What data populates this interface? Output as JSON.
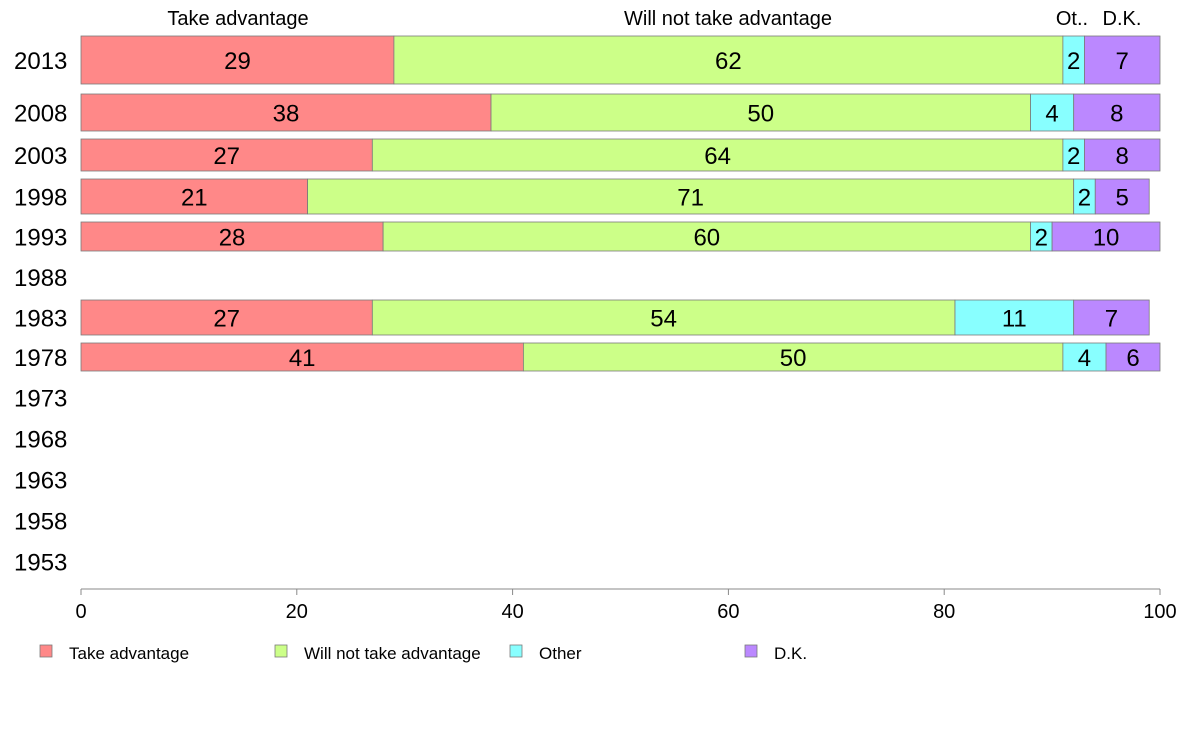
{
  "chart_data": {
    "type": "bar",
    "orientation": "horizontal",
    "stacked": true,
    "title": "",
    "xlabel": "",
    "ylabel": "",
    "xlim": [
      0,
      100
    ],
    "x_ticks": [
      "0",
      "20",
      "40",
      "60",
      "80",
      "100"
    ],
    "grid": false,
    "legend_position": "bottom",
    "column_headers": [
      "Take advantage",
      "Will not take advantage",
      "Ot..",
      "D.K."
    ],
    "categories": [
      "2013",
      "2008",
      "2003",
      "1998",
      "1993",
      "1988",
      "1983",
      "1978",
      "1973",
      "1968",
      "1963",
      "1958",
      "1953"
    ],
    "series": [
      {
        "name": "Take advantage",
        "color": "#ff8888",
        "values": [
          29,
          38,
          27,
          21,
          28,
          null,
          27,
          41,
          null,
          null,
          null,
          null,
          null
        ]
      },
      {
        "name": "Will not take advantage",
        "color": "#ccff88",
        "values": [
          62,
          50,
          64,
          71,
          60,
          null,
          54,
          50,
          null,
          null,
          null,
          null,
          null
        ]
      },
      {
        "name": "Other",
        "color": "#88ffff",
        "values": [
          2,
          4,
          2,
          2,
          2,
          null,
          11,
          4,
          null,
          null,
          null,
          null,
          null
        ]
      },
      {
        "name": "D.K.",
        "color": "#bb88ff",
        "values": [
          7,
          8,
          8,
          5,
          10,
          null,
          7,
          6,
          null,
          null,
          null,
          null,
          null
        ]
      }
    ]
  }
}
